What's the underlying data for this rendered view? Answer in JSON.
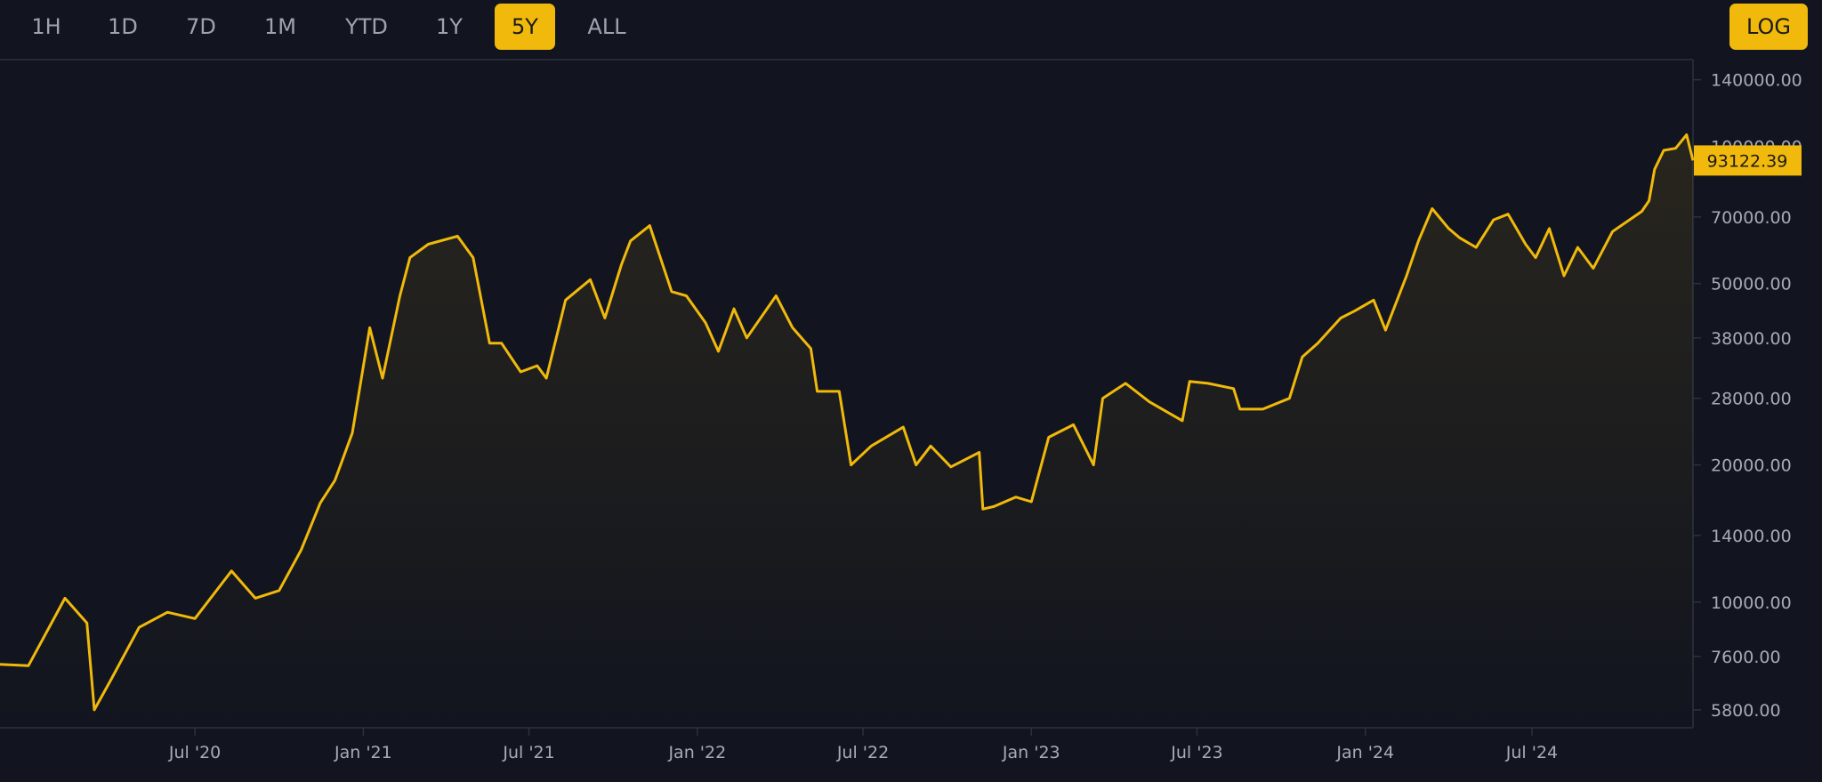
{
  "toolbar": {
    "ranges": [
      {
        "label": "1H"
      },
      {
        "label": "1D"
      },
      {
        "label": "7D"
      },
      {
        "label": "1M"
      },
      {
        "label": "YTD"
      },
      {
        "label": "1Y"
      },
      {
        "label": "5Y",
        "active": true
      },
      {
        "label": "ALL"
      }
    ],
    "log_label": "LOG"
  },
  "colors": {
    "background": "#12151f",
    "accent": "#f0b90b",
    "line": "#f0b90b",
    "axis_text": "#a6abb8",
    "axis_line": "#2c3140"
  },
  "chart_data": {
    "type": "line",
    "scale": "log",
    "series": [
      {
        "x": [
          "2019-12-01",
          "2020-01-01",
          "2020-02-10",
          "2020-03-05",
          "2020-03-13",
          "2020-04-01",
          "2020-05-01",
          "2020-06-01",
          "2020-07-01",
          "2020-08-10",
          "2020-09-05",
          "2020-10-01",
          "2020-10-25",
          "2020-11-15",
          "2020-12-01",
          "2020-12-20",
          "2021-01-08",
          "2021-01-22",
          "2021-02-10",
          "2021-02-21",
          "2021-03-13",
          "2021-04-14",
          "2021-05-01",
          "2021-05-19",
          "2021-06-01",
          "2021-06-22",
          "2021-07-10",
          "2021-07-20",
          "2021-08-10",
          "2021-09-06",
          "2021-09-22",
          "2021-10-10",
          "2021-10-20",
          "2021-11-10",
          "2021-12-04",
          "2021-12-20",
          "2022-01-10",
          "2022-01-24",
          "2022-02-10",
          "2022-02-24",
          "2022-03-28",
          "2022-04-15",
          "2022-05-05",
          "2022-05-12",
          "2022-06-05",
          "2022-06-18",
          "2022-07-10",
          "2022-08-14",
          "2022-08-28",
          "2022-09-13",
          "2022-10-05",
          "2022-11-05",
          "2022-11-09",
          "2022-11-21",
          "2022-12-15",
          "2023-01-01",
          "2023-01-20",
          "2023-02-16",
          "2023-03-10",
          "2023-03-20",
          "2023-04-14",
          "2023-05-10",
          "2023-06-15",
          "2023-06-23",
          "2023-07-13",
          "2023-08-10",
          "2023-08-17",
          "2023-09-11",
          "2023-10-10",
          "2023-10-24",
          "2023-11-10",
          "2023-12-05",
          "2023-12-20",
          "2024-01-10",
          "2024-01-23",
          "2024-02-15",
          "2024-02-28",
          "2024-03-14",
          "2024-04-01",
          "2024-04-13",
          "2024-05-01",
          "2024-05-20",
          "2024-06-05",
          "2024-06-24",
          "2024-07-05",
          "2024-07-20",
          "2024-08-05",
          "2024-08-20",
          "2024-09-06",
          "2024-09-27",
          "2024-10-29",
          "2024-11-06",
          "2024-11-12",
          "2024-11-22",
          "2024-12-05",
          "2024-12-17",
          "2024-12-24"
        ],
        "y": [
          7300,
          7250,
          10200,
          9000,
          5800,
          6800,
          8800,
          9500,
          9200,
          11700,
          10200,
          10600,
          13000,
          16500,
          18500,
          23500,
          40000,
          31000,
          47000,
          57000,
          61000,
          63500,
          57000,
          37000,
          37000,
          32000,
          33000,
          31000,
          46000,
          51000,
          42000,
          55000,
          62000,
          67000,
          48000,
          47000,
          41000,
          35500,
          44000,
          38000,
          47000,
          40000,
          36000,
          29000,
          29000,
          20000,
          22000,
          24200,
          20000,
          22000,
          19800,
          21300,
          16000,
          16200,
          17000,
          16600,
          23000,
          24500,
          20000,
          28000,
          30200,
          27500,
          25000,
          30500,
          30200,
          29400,
          26500,
          26500,
          28000,
          34500,
          37000,
          42000,
          43500,
          46000,
          39500,
          52000,
          62000,
          73000,
          66000,
          63000,
          60000,
          69000,
          71000,
          61000,
          57000,
          66000,
          52000,
          60000,
          54000,
          65000,
          72000,
          76000,
          89000,
          98000,
          99000,
          106000,
          93122.39
        ]
      }
    ],
    "y_ticks": [
      "5800.00",
      "7600.00",
      "10000.00",
      "14000.00",
      "20000.00",
      "28000.00",
      "38000.00",
      "50000.00",
      "70000.00",
      "100000.00",
      "140000.00"
    ],
    "x_ticks": [
      "Jul '20",
      "Jan '21",
      "Jul '21",
      "Jan '22",
      "Jul '22",
      "Jan '23",
      "Jul '23",
      "Jan '24",
      "Jul '24"
    ],
    "x_tick_dates": [
      "2020-07-01",
      "2021-01-01",
      "2021-07-01",
      "2022-01-01",
      "2022-07-01",
      "2023-01-01",
      "2023-07-01",
      "2024-01-01",
      "2024-07-01"
    ],
    "current_value": "93122.39",
    "x_range": [
      "2019-12-01",
      "2024-12-24"
    ],
    "y_range": [
      5300,
      155000
    ],
    "grid": false
  }
}
